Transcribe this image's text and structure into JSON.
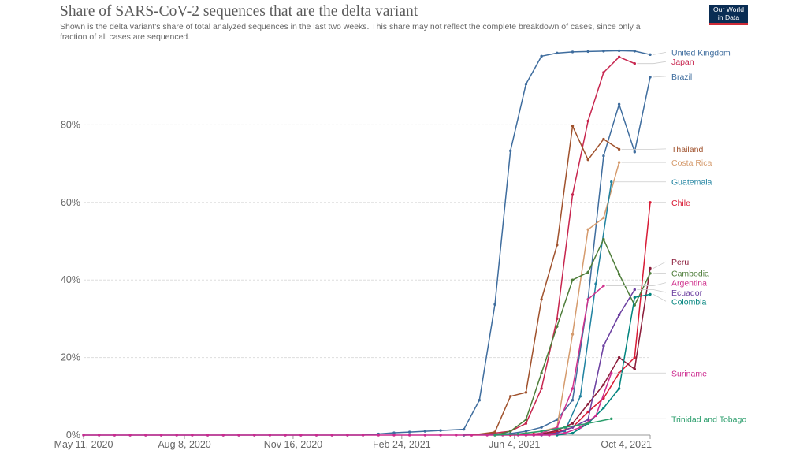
{
  "chart_data": {
    "type": "line",
    "title": "Share of SARS-CoV-2 sequences that are the delta variant",
    "subtitle": "Shown is the delta variant's share of total analyzed sequences in the last two weeks. This share may not reflect the complete breakdown of cases, since only a fraction of all cases are sequenced.",
    "logo": [
      "Our World",
      "in Data"
    ],
    "xlabel": "",
    "ylabel": "",
    "xlim": [
      0,
      73
    ],
    "ylim": [
      0,
      100
    ],
    "x_unit": "weeks since May 11, 2020",
    "x_ticks": [
      {
        "x": 0,
        "label": "May 11, 2020"
      },
      {
        "x": 13,
        "label": "Aug 8, 2020"
      },
      {
        "x": 27,
        "label": "Nov 16, 2020"
      },
      {
        "x": 41,
        "label": "Feb 24, 2021"
      },
      {
        "x": 55.5,
        "label": "Jun 4, 2021"
      },
      {
        "x": 73,
        "label": "Oct 4, 2021"
      }
    ],
    "y_ticks": [
      {
        "y": 0,
        "label": "0%"
      },
      {
        "y": 20,
        "label": "20%"
      },
      {
        "y": 40,
        "label": "40%"
      },
      {
        "y": 60,
        "label": "60%"
      },
      {
        "y": 80,
        "label": "80%"
      }
    ],
    "grid": true,
    "legend": "right (end labels)",
    "series": [
      {
        "name": "United Kingdom",
        "color": "#3f6d9e",
        "label_y": 98.7,
        "points": [
          [
            0,
            0
          ],
          [
            2,
            0
          ],
          [
            4,
            0
          ],
          [
            6,
            0
          ],
          [
            8,
            0
          ],
          [
            10,
            0
          ],
          [
            12,
            0
          ],
          [
            14,
            0
          ],
          [
            16,
            0
          ],
          [
            18,
            0
          ],
          [
            20,
            0
          ],
          [
            22,
            0
          ],
          [
            24,
            0
          ],
          [
            26,
            0
          ],
          [
            28,
            0
          ],
          [
            30,
            0
          ],
          [
            32,
            0
          ],
          [
            34,
            0
          ],
          [
            36,
            0
          ],
          [
            38,
            0.3
          ],
          [
            40,
            0.6
          ],
          [
            42,
            0.8
          ],
          [
            44,
            1
          ],
          [
            46,
            1.2
          ],
          [
            49,
            1.5
          ],
          [
            51,
            9
          ],
          [
            53,
            33.7
          ],
          [
            55,
            73.3
          ],
          [
            57,
            90.5
          ],
          [
            59,
            97.7
          ],
          [
            61,
            98.5
          ],
          [
            63,
            98.8
          ],
          [
            65,
            98.9
          ],
          [
            67,
            99
          ],
          [
            69,
            99.1
          ],
          [
            71,
            99
          ],
          [
            73,
            98.1
          ]
        ]
      },
      {
        "name": "Japan",
        "color": "#c7254e",
        "label_y": 96.3,
        "points": [
          [
            49,
            0
          ],
          [
            52,
            0.3
          ],
          [
            55,
            1
          ],
          [
            57,
            3
          ],
          [
            59,
            12
          ],
          [
            61,
            30
          ],
          [
            63,
            62
          ],
          [
            65,
            81
          ],
          [
            67,
            93.5
          ],
          [
            69,
            97.5
          ],
          [
            71,
            95.8
          ]
        ]
      },
      {
        "name": "Brazil",
        "color": "#3f6d9e",
        "label_y": 92.5,
        "points": [
          [
            49,
            0
          ],
          [
            52,
            0.2
          ],
          [
            55,
            0.4
          ],
          [
            57,
            1
          ],
          [
            59,
            2
          ],
          [
            61,
            4
          ],
          [
            63,
            9
          ],
          [
            65,
            35
          ],
          [
            67,
            72
          ],
          [
            69,
            85.3
          ],
          [
            71,
            73
          ],
          [
            73,
            92.3
          ]
        ]
      },
      {
        "name": "Thailand",
        "color": "#a0522d",
        "label_y": 73.8,
        "points": [
          [
            50,
            0
          ],
          [
            53,
            0.8
          ],
          [
            55,
            10
          ],
          [
            57,
            11
          ],
          [
            59,
            35
          ],
          [
            61,
            49
          ],
          [
            63,
            79.7
          ],
          [
            65,
            71
          ],
          [
            67,
            76.3
          ],
          [
            69,
            73.7
          ]
        ]
      },
      {
        "name": "Costa Rica",
        "color": "#d59b6d",
        "label_y": 70.3,
        "points": [
          [
            55,
            0
          ],
          [
            57,
            0.5
          ],
          [
            59,
            1
          ],
          [
            61,
            2
          ],
          [
            63,
            26
          ],
          [
            65,
            53
          ],
          [
            67,
            56
          ],
          [
            69,
            70.3
          ]
        ]
      },
      {
        "name": "Guatemala",
        "color": "#1f82a0",
        "label_y": 65.3,
        "points": [
          [
            58,
            0
          ],
          [
            60,
            0.5
          ],
          [
            62,
            1
          ],
          [
            64,
            10
          ],
          [
            66,
            39
          ],
          [
            68,
            65.3
          ]
        ]
      },
      {
        "name": "Chile",
        "color": "#d81b35",
        "label_y": 60,
        "points": [
          [
            55,
            0
          ],
          [
            58,
            0.3
          ],
          [
            61,
            0.8
          ],
          [
            63,
            2
          ],
          [
            65,
            6
          ],
          [
            67,
            9.5
          ],
          [
            69,
            16
          ],
          [
            71,
            20
          ],
          [
            73,
            60
          ]
        ]
      },
      {
        "name": "Peru",
        "color": "#8b1c3a",
        "label_y": 44.7,
        "points": [
          [
            57,
            0
          ],
          [
            59,
            0.3
          ],
          [
            61,
            1.2
          ],
          [
            63,
            3
          ],
          [
            65,
            8
          ],
          [
            67,
            13
          ],
          [
            69,
            20
          ],
          [
            71,
            17
          ],
          [
            73,
            43
          ]
        ]
      },
      {
        "name": "Cambodia",
        "color": "#4e7d3a",
        "label_y": 41.8,
        "points": [
          [
            53,
            0
          ],
          [
            55,
            1
          ],
          [
            57,
            4
          ],
          [
            59,
            16
          ],
          [
            61,
            28
          ],
          [
            63,
            40
          ],
          [
            65,
            42
          ],
          [
            67,
            50.5
          ],
          [
            69,
            41.5
          ],
          [
            71,
            33.5
          ],
          [
            73,
            41.7
          ]
        ]
      },
      {
        "name": "Argentina",
        "color": "#d0338e",
        "label_y": 39.3,
        "points": [
          [
            57,
            0
          ],
          [
            59,
            0.5
          ],
          [
            61,
            2
          ],
          [
            63,
            12
          ],
          [
            65,
            35
          ],
          [
            67,
            38.5
          ]
        ]
      },
      {
        "name": "Ecuador",
        "color": "#6b3fa0",
        "label_y": 36.8,
        "points": [
          [
            59,
            0
          ],
          [
            61,
            0.5
          ],
          [
            63,
            2
          ],
          [
            65,
            4
          ],
          [
            67,
            23
          ],
          [
            69,
            31
          ],
          [
            71,
            37.5
          ]
        ]
      },
      {
        "name": "Colombia",
        "color": "#00847e",
        "label_y": 34.5,
        "points": [
          [
            61,
            0
          ],
          [
            63,
            0.5
          ],
          [
            65,
            3
          ],
          [
            67,
            7
          ],
          [
            69,
            12
          ],
          [
            71,
            35.5
          ],
          [
            73,
            36.3
          ]
        ]
      },
      {
        "name": "Suriname",
        "color": "#cc2b8f",
        "label_y": 16,
        "points": [
          [
            0,
            0
          ],
          [
            2,
            0
          ],
          [
            4,
            0
          ],
          [
            6,
            0
          ],
          [
            8,
            0
          ],
          [
            10,
            0
          ],
          [
            12,
            0
          ],
          [
            14,
            0
          ],
          [
            16,
            0
          ],
          [
            18,
            0
          ],
          [
            20,
            0
          ],
          [
            22,
            0
          ],
          [
            24,
            0
          ],
          [
            26,
            0
          ],
          [
            28,
            0
          ],
          [
            30,
            0
          ],
          [
            32,
            0
          ],
          [
            34,
            0
          ],
          [
            36,
            0
          ],
          [
            38,
            0
          ],
          [
            40,
            0
          ],
          [
            42,
            0
          ],
          [
            44,
            0
          ],
          [
            46,
            0
          ],
          [
            48,
            0
          ],
          [
            50,
            0
          ],
          [
            52,
            0
          ],
          [
            54,
            0
          ],
          [
            56,
            0
          ],
          [
            58,
            0
          ],
          [
            60,
            0
          ],
          [
            62,
            0.5
          ],
          [
            64,
            2
          ],
          [
            66,
            5
          ],
          [
            68,
            16
          ]
        ]
      },
      {
        "name": "Trinidad and Tobago",
        "color": "#2a9d6b",
        "label_y": 4.2,
        "points": [
          [
            53,
            0
          ],
          [
            56,
            0.3
          ],
          [
            59,
            1
          ],
          [
            62,
            2
          ],
          [
            65,
            3
          ],
          [
            68,
            4.2
          ]
        ]
      }
    ]
  }
}
